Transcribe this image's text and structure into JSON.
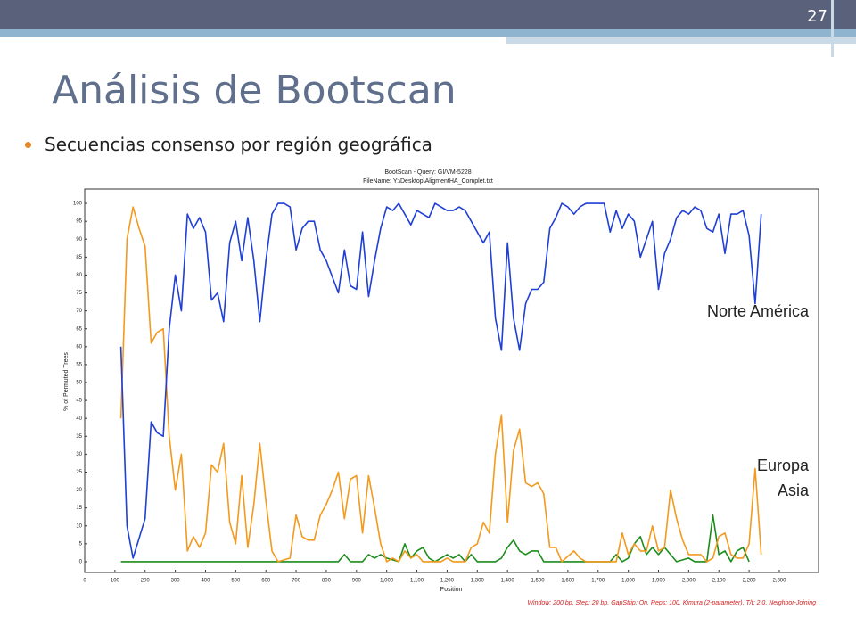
{
  "slide_number": "27",
  "title": "Análisis de Bootscan",
  "bullets": [
    "Secuencias consenso por región geográfica"
  ],
  "chart_data": {
    "type": "line",
    "title": "BootScan - Query: GI/VM-5228",
    "subtitle": "FileName: Y:\\Desktop\\AligmentHA_Complet.txt",
    "x_label": "Position",
    "y_label": "% of Permuted Trees",
    "footnote": "Window: 200 bp, Step: 20 bp, GapStrip: On, Reps: 100, Kimura (2-parameter), T/t: 2.0, Neighbor-Joining",
    "xlim": [
      0,
      2430
    ],
    "ylim": [
      -3,
      104
    ],
    "xticks": [
      0,
      100,
      200,
      300,
      400,
      500,
      600,
      700,
      800,
      900,
      {
        "value": 1000,
        "label": "1,000"
      },
      {
        "value": 1100,
        "label": "1,100"
      },
      {
        "value": 1200,
        "label": "1,200"
      },
      {
        "value": 1300,
        "label": "1,300"
      },
      {
        "value": 1400,
        "label": "1,400"
      },
      {
        "value": 1500,
        "label": "1,500"
      },
      {
        "value": 1600,
        "label": "1,600"
      },
      {
        "value": 1700,
        "label": "1,700"
      },
      {
        "value": 1800,
        "label": "1,800"
      },
      {
        "value": 1900,
        "label": "1,900"
      },
      {
        "value": 2000,
        "label": "2,000"
      },
      {
        "value": 2100,
        "label": "2,100"
      },
      {
        "value": 2200,
        "label": "2,200"
      },
      {
        "value": 2300,
        "label": "2,300"
      }
    ],
    "yticks": [
      0,
      5,
      10,
      15,
      20,
      25,
      30,
      35,
      40,
      45,
      50,
      55,
      60,
      65,
      70,
      75,
      80,
      85,
      90,
      95,
      100
    ],
    "series": [
      {
        "name": "Norte América",
        "color": "#1f3fd6",
        "x": [
          120,
          140,
          160,
          200,
          220,
          240,
          260,
          280,
          300,
          320,
          340,
          360,
          380,
          400,
          420,
          440,
          460,
          480,
          500,
          520,
          540,
          560,
          580,
          600,
          620,
          640,
          660,
          680,
          700,
          720,
          740,
          760,
          780,
          800,
          840,
          860,
          880,
          900,
          920,
          940,
          960,
          980,
          1000,
          1020,
          1040,
          1080,
          1100,
          1140,
          1160,
          1180,
          1200,
          1220,
          1240,
          1260,
          1280,
          1320,
          1340,
          1360,
          1380,
          1400,
          1420,
          1440,
          1460,
          1480,
          1500,
          1520,
          1540,
          1560,
          1580,
          1600,
          1620,
          1640,
          1660,
          1720,
          1740,
          1760,
          1780,
          1800,
          1820,
          1840,
          1880,
          1900,
          1920,
          1940,
          1960,
          1980,
          2000,
          2020,
          2040,
          2060,
          2080,
          2100,
          2120,
          2140,
          2160,
          2180,
          2200,
          2220,
          2240
        ],
        "values": [
          60,
          10,
          1,
          12,
          39,
          36,
          35,
          65,
          80,
          70,
          97,
          93,
          96,
          92,
          73,
          75,
          67,
          89,
          95,
          84,
          96,
          84,
          67,
          84,
          97,
          100,
          100,
          99,
          87,
          93,
          95,
          95,
          87,
          84,
          75,
          87,
          77,
          76,
          92,
          74,
          84,
          93,
          99,
          98,
          100,
          94,
          98,
          96,
          100,
          99,
          98,
          98,
          99,
          98,
          95,
          89,
          92,
          68,
          59,
          89,
          68,
          59,
          72,
          76,
          76,
          78,
          93,
          96,
          100,
          99,
          97,
          99,
          100,
          100,
          92,
          98,
          93,
          97,
          95,
          85,
          95,
          76,
          86,
          90,
          96,
          98,
          97,
          99,
          98,
          93,
          92,
          97,
          86,
          97,
          97,
          98,
          91,
          72,
          97
        ]
      },
      {
        "name": "Europa",
        "color": "#f39a1e",
        "x": [
          120,
          140,
          160,
          180,
          200,
          220,
          240,
          260,
          280,
          300,
          320,
          340,
          360,
          380,
          400,
          420,
          440,
          460,
          480,
          500,
          520,
          540,
          560,
          580,
          600,
          620,
          640,
          680,
          700,
          720,
          740,
          760,
          780,
          800,
          820,
          840,
          860,
          880,
          900,
          920,
          940,
          960,
          980,
          1000,
          1020,
          1040,
          1060,
          1080,
          1100,
          1120,
          1180,
          1200,
          1220,
          1260,
          1280,
          1300,
          1320,
          1340,
          1360,
          1380,
          1400,
          1420,
          1440,
          1460,
          1480,
          1500,
          1520,
          1540,
          1560,
          1580,
          1620,
          1640,
          1660,
          1760,
          1780,
          1800,
          1820,
          1840,
          1860,
          1880,
          1900,
          1920,
          1940,
          1960,
          1980,
          2000,
          2020,
          2040,
          2060,
          2080,
          2100,
          2120,
          2140,
          2160,
          2180,
          2200,
          2220,
          2240
        ],
        "values": [
          40,
          90,
          99,
          93,
          88,
          61,
          64,
          65,
          35,
          20,
          30,
          3,
          7,
          4,
          8,
          27,
          25,
          33,
          11,
          5,
          24,
          4,
          16,
          33,
          17,
          3,
          0,
          1,
          13,
          7,
          6,
          6,
          13,
          16,
          20,
          25,
          12,
          23,
          24,
          8,
          24,
          15,
          5,
          0,
          1,
          0,
          3,
          1,
          2,
          0,
          0,
          1,
          0,
          0,
          4,
          5,
          11,
          8,
          30,
          41,
          11,
          31,
          37,
          22,
          21,
          22,
          19,
          4,
          4,
          0,
          3,
          1,
          0,
          0,
          8,
          2,
          5,
          3,
          3,
          10,
          3,
          4,
          20,
          12,
          6,
          2,
          2,
          2,
          0,
          1,
          7,
          8,
          2,
          1,
          1,
          5,
          26,
          2
        ]
      },
      {
        "name": "Asia",
        "color": "#1c8c1c",
        "x": [
          120,
          820,
          840,
          860,
          880,
          920,
          940,
          960,
          980,
          1000,
          1040,
          1060,
          1080,
          1100,
          1120,
          1140,
          1160,
          1200,
          1220,
          1240,
          1260,
          1280,
          1300,
          1360,
          1380,
          1400,
          1420,
          1440,
          1460,
          1480,
          1500,
          1520,
          1740,
          1760,
          1780,
          1800,
          1820,
          1840,
          1860,
          1880,
          1900,
          1920,
          1940,
          1960,
          2000,
          2020,
          2060,
          2080,
          2100,
          2120,
          2140,
          2160,
          2180,
          2200
        ],
        "values": [
          0,
          0,
          0,
          2,
          0,
          0,
          2,
          1,
          2,
          1,
          0,
          5,
          1,
          3,
          4,
          1,
          0,
          2,
          1,
          2,
          0,
          2,
          0,
          0,
          1,
          4,
          6,
          3,
          2,
          3,
          3,
          0,
          0,
          2,
          0,
          1,
          5,
          7,
          2,
          4,
          2,
          4,
          2,
          0,
          1,
          0,
          0,
          13,
          2,
          3,
          0,
          3,
          4,
          0
        ]
      }
    ]
  }
}
